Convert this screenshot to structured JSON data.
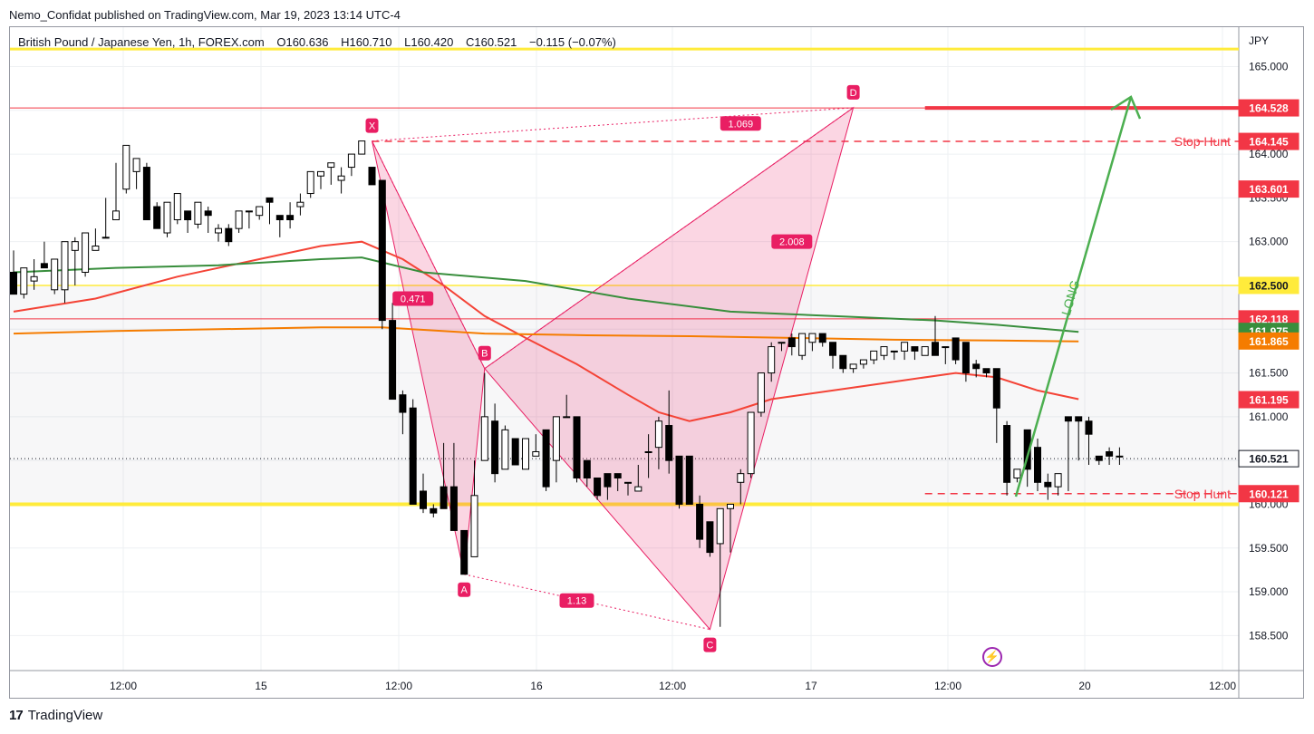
{
  "header": {
    "published": "Nemo_Confidat published on TradingView.com, Mar 19, 2023 13:14 UTC-4"
  },
  "legend": {
    "symbol": "British Pound / Japanese Yen, 1h, FOREX.com",
    "o_label": "O",
    "o": "160.636",
    "h_label": "H",
    "h": "160.710",
    "l_label": "L",
    "l": "160.420",
    "c_label": "C",
    "c": "160.521",
    "change": "−0.115 (−0.07%)"
  },
  "footer": {
    "brand": "TradingView"
  },
  "colors": {
    "bull": "#ffffff",
    "bear": "#000000",
    "pattern": "#e91e63",
    "red_level": "#f23645",
    "yellow": "#ffeb3b",
    "green_arrow": "#4caf50",
    "ma_red": "#f44336",
    "ma_green": "#388e3c",
    "ma_orange": "#f57c00"
  },
  "chart_data": {
    "type": "candlestick",
    "currency_label": "JPY",
    "y_ticks": [
      "158.500",
      "159.000",
      "159.500",
      "160.000",
      "160.500",
      "161.000",
      "161.500",
      "162.000",
      "162.500",
      "163.000",
      "163.500",
      "164.000",
      "164.500",
      "165.000"
    ],
    "ylim": [
      158.1,
      165.45
    ],
    "x_ticks": [
      "12:00",
      "15",
      "12:00",
      "16",
      "12:00",
      "17",
      "12:00",
      "20",
      "12:00"
    ],
    "candles": [
      [
        162.65,
        162.8,
        162.4,
        162.9
      ],
      [
        162.4,
        162.55,
        162.7,
        162.35
      ],
      [
        162.55,
        162.8,
        162.6,
        162.45
      ],
      [
        162.75,
        162.9,
        162.7,
        163.0
      ],
      [
        162.45,
        162.45,
        162.8,
        162.4
      ],
      [
        162.45,
        162.5,
        163.0,
        162.3
      ],
      [
        162.9,
        163.05,
        163.0,
        162.5
      ],
      [
        162.65,
        162.85,
        163.1,
        162.6
      ],
      [
        162.9,
        163.1,
        162.95,
        163.15
      ],
      [
        163.05,
        163.25,
        163.05,
        163.5
      ],
      [
        163.25,
        163.8,
        163.35,
        163.9
      ],
      [
        163.6,
        163.7,
        164.1,
        163.55
      ],
      [
        163.8,
        163.9,
        163.95,
        163.6
      ],
      [
        163.85,
        163.9,
        163.25,
        163.35
      ],
      [
        163.4,
        163.45,
        163.15,
        163.2
      ],
      [
        163.1,
        163.2,
        163.45,
        163.05
      ],
      [
        163.25,
        163.3,
        163.55,
        163.2
      ],
      [
        163.35,
        163.2,
        163.25,
        163.1
      ],
      [
        163.2,
        163.25,
        163.45,
        163.15
      ],
      [
        163.35,
        163.4,
        163.3,
        163.1
      ],
      [
        163.1,
        163.2,
        163.15,
        163.0
      ],
      [
        163.15,
        163.2,
        163.0,
        162.95
      ],
      [
        163.15,
        163.15,
        163.35,
        163.1
      ],
      [
        163.35,
        163.25,
        163.35,
        163.15
      ],
      [
        163.3,
        163.35,
        163.4,
        163.25
      ],
      [
        163.5,
        163.3,
        163.45,
        163.2
      ],
      [
        163.3,
        163.15,
        163.25,
        163.05
      ],
      [
        163.3,
        163.45,
        163.25,
        163.15
      ],
      [
        163.4,
        163.55,
        163.45,
        163.3
      ],
      [
        163.55,
        163.6,
        163.8,
        163.5
      ],
      [
        163.75,
        163.8,
        163.8,
        163.6
      ],
      [
        163.85,
        163.9,
        163.9,
        163.65
      ],
      [
        163.7,
        163.85,
        163.75,
        163.55
      ],
      [
        163.85,
        164.0,
        164.0,
        163.75
      ],
      [
        164.0,
        164.0,
        164.15,
        164.0
      ],
      [
        163.85,
        163.85,
        163.65,
        163.7
      ],
      [
        163.7,
        163.7,
        162.1,
        162.0
      ],
      [
        162.1,
        162.3,
        161.2,
        161.9
      ],
      [
        161.25,
        161.3,
        161.05,
        160.8
      ],
      [
        161.1,
        161.2,
        160.0,
        160.0
      ],
      [
        160.15,
        160.35,
        159.95,
        159.9
      ],
      [
        159.95,
        160.0,
        159.9,
        159.85
      ],
      [
        160.2,
        160.7,
        159.95,
        160.2
      ],
      [
        160.2,
        160.7,
        159.7,
        159.7
      ],
      [
        159.7,
        159.5,
        159.2,
        159.2
      ],
      [
        159.4,
        160.05,
        160.1,
        160.5
      ],
      [
        160.5,
        161.5,
        161.0,
        161.5
      ],
      [
        160.95,
        161.15,
        160.35,
        160.25
      ],
      [
        160.4,
        160.9,
        160.85,
        160.8
      ],
      [
        160.75,
        160.75,
        160.45,
        160.45
      ],
      [
        160.4,
        160.75,
        160.75,
        160.7
      ],
      [
        160.55,
        160.8,
        160.6,
        160.55
      ],
      [
        160.85,
        160.75,
        160.2,
        160.15
      ],
      [
        160.5,
        160.65,
        161.0,
        160.25
      ],
      [
        161.0,
        161.15,
        161.0,
        161.25
      ],
      [
        161.0,
        161.0,
        160.3,
        160.25
      ],
      [
        160.5,
        160.5,
        160.3,
        160.2
      ],
      [
        160.3,
        160.3,
        160.1,
        160.05
      ],
      [
        160.35,
        160.2,
        160.2,
        160.05
      ],
      [
        160.35,
        160.2,
        160.3,
        160.15
      ],
      [
        160.25,
        160.25,
        160.25,
        160.1
      ],
      [
        160.15,
        160.45,
        160.2,
        160.35
      ],
      [
        160.6,
        160.8,
        160.6,
        160.3
      ],
      [
        160.65,
        161.0,
        160.95,
        160.4
      ],
      [
        160.9,
        161.3,
        160.5,
        160.35
      ],
      [
        160.55,
        160.55,
        160.0,
        159.95
      ],
      [
        160.55,
        160.45,
        160.0,
        160.0
      ],
      [
        160.0,
        160.1,
        159.6,
        159.5
      ],
      [
        159.8,
        159.8,
        159.45,
        159.4
      ],
      [
        159.55,
        159.6,
        159.95,
        158.6
      ],
      [
        159.95,
        159.95,
        160.0,
        159.45
      ],
      [
        160.25,
        160.4,
        160.35,
        160.0
      ],
      [
        160.35,
        160.85,
        161.05,
        160.3
      ],
      [
        161.05,
        161.5,
        161.5,
        161.0
      ],
      [
        161.5,
        161.85,
        161.8,
        161.4
      ],
      [
        161.85,
        161.85,
        161.85,
        161.75
      ],
      [
        161.9,
        161.95,
        161.8,
        161.7
      ],
      [
        161.7,
        161.75,
        161.95,
        161.65
      ],
      [
        161.85,
        161.85,
        161.95,
        161.75
      ],
      [
        161.95,
        161.9,
        161.85,
        161.8
      ],
      [
        161.85,
        161.85,
        161.7,
        161.55
      ],
      [
        161.7,
        161.7,
        161.55,
        161.5
      ],
      [
        161.55,
        161.55,
        161.6,
        161.5
      ],
      [
        161.6,
        161.55,
        161.65,
        161.55
      ],
      [
        161.65,
        161.65,
        161.75,
        161.6
      ],
      [
        161.7,
        161.7,
        161.8,
        161.65
      ],
      [
        161.75,
        161.75,
        161.75,
        161.65
      ],
      [
        161.75,
        161.7,
        161.85,
        161.65
      ],
      [
        161.8,
        161.8,
        161.75,
        161.65
      ],
      [
        161.7,
        161.7,
        161.8,
        161.7
      ],
      [
        161.85,
        162.15,
        161.7,
        161.75
      ],
      [
        161.8,
        161.75,
        161.8,
        161.6
      ],
      [
        161.9,
        161.7,
        161.65,
        161.6
      ],
      [
        161.85,
        161.6,
        161.5,
        161.4
      ],
      [
        161.6,
        161.65,
        161.55,
        161.45
      ],
      [
        161.55,
        161.5,
        161.5,
        161.45
      ],
      [
        161.55,
        161.5,
        161.1,
        160.7
      ],
      [
        160.9,
        160.95,
        160.25,
        160.1
      ],
      [
        160.3,
        160.4,
        160.4,
        160.25
      ],
      [
        160.85,
        160.45,
        160.4,
        160.2
      ],
      [
        160.65,
        160.75,
        160.25,
        160.15
      ],
      [
        160.25,
        160.35,
        160.2,
        160.05
      ],
      [
        160.2,
        160.2,
        160.35,
        160.1
      ],
      [
        161.0,
        161.0,
        160.95,
        160.15
      ],
      [
        161.0,
        161.0,
        160.95,
        160.5
      ],
      [
        160.95,
        161.0,
        160.8,
        160.45
      ],
      [
        160.55,
        160.55,
        160.5,
        160.45
      ],
      [
        160.6,
        160.65,
        160.55,
        160.45
      ],
      [
        160.55,
        160.65,
        160.55,
        160.45
      ]
    ],
    "moving_averages": [
      {
        "color": "#f44336",
        "points": [
          [
            0,
            162.2
          ],
          [
            8,
            162.35
          ],
          [
            16,
            162.6
          ],
          [
            24,
            162.8
          ],
          [
            30,
            162.95
          ],
          [
            34,
            163.0
          ],
          [
            38,
            162.8
          ],
          [
            42,
            162.5
          ],
          [
            46,
            162.15
          ],
          [
            50,
            161.9
          ],
          [
            55,
            161.6
          ],
          [
            60,
            161.25
          ],
          [
            63,
            161.05
          ],
          [
            66,
            160.95
          ],
          [
            70,
            161.05
          ],
          [
            74,
            161.2
          ],
          [
            80,
            161.3
          ],
          [
            86,
            161.4
          ],
          [
            92,
            161.5
          ],
          [
            96,
            161.45
          ],
          [
            100,
            161.3
          ],
          [
            104,
            161.2
          ]
        ]
      },
      {
        "color": "#388e3c",
        "points": [
          [
            0,
            162.65
          ],
          [
            10,
            162.7
          ],
          [
            20,
            162.73
          ],
          [
            30,
            162.8
          ],
          [
            34,
            162.82
          ],
          [
            40,
            162.65
          ],
          [
            50,
            162.55
          ],
          [
            60,
            162.35
          ],
          [
            70,
            162.2
          ],
          [
            80,
            162.15
          ],
          [
            90,
            162.1
          ],
          [
            96,
            162.05
          ],
          [
            104,
            161.97
          ]
        ]
      },
      {
        "color": "#f57c00",
        "points": [
          [
            0,
            161.95
          ],
          [
            10,
            161.98
          ],
          [
            20,
            162.0
          ],
          [
            30,
            162.02
          ],
          [
            36,
            162.02
          ],
          [
            46,
            161.95
          ],
          [
            56,
            161.93
          ],
          [
            66,
            161.92
          ],
          [
            76,
            161.9
          ],
          [
            86,
            161.88
          ],
          [
            96,
            161.87
          ],
          [
            104,
            161.86
          ]
        ]
      }
    ],
    "horizontal_levels": [
      {
        "price": 165.2,
        "color": "#ffeb3b",
        "width": 3,
        "dash": "",
        "from": "left",
        "label": ""
      },
      {
        "price": 164.528,
        "color": "#f23645",
        "width": 1,
        "dash": "",
        "from": "left",
        "label": "164.528"
      },
      {
        "price": 164.145,
        "color": "#f23645",
        "width": 1.5,
        "dash": "8 6",
        "from": "x",
        "label": "164.145"
      },
      {
        "price": 162.5,
        "color": "#ffeb3b",
        "width": 1.5,
        "dash": "",
        "from": "left",
        "label": "162.500"
      },
      {
        "price": 162.118,
        "color": "#f23645",
        "width": 1,
        "dash": "",
        "from": "left",
        "label": "162.118"
      },
      {
        "price": 160.521,
        "color": "#131722",
        "width": 1,
        "dash": "1 3",
        "from": "left",
        "label": "160.521"
      },
      {
        "price": 160.121,
        "color": "#f23645",
        "width": 1.5,
        "dash": "8 6",
        "from": "stop",
        "label": "160.121"
      },
      {
        "price": 160.0,
        "color": "#ffeb3b",
        "width": 4,
        "dash": "",
        "from": "left",
        "label": ""
      }
    ],
    "price_labels": [
      {
        "text": "164.528",
        "color": "#f23645",
        "price": 164.528
      },
      {
        "text": "164.145",
        "color": "#f23645",
        "price": 164.145
      },
      {
        "text": "163.601",
        "color": "#f23645",
        "price": 163.601
      },
      {
        "text": "162.500",
        "color": "#ffeb3b",
        "price": 162.5,
        "dark_text": true
      },
      {
        "text": "162.118",
        "color": "#f23645",
        "price": 162.118
      },
      {
        "text": "161.975",
        "color": "#388e3c",
        "price": 161.975
      },
      {
        "text": "161.865",
        "color": "#f57c00",
        "price": 161.865
      },
      {
        "text": "161.195",
        "color": "#f23645",
        "price": 161.195
      },
      {
        "text": "160.521",
        "color": "#ffffff",
        "price": 160.521,
        "dark_text": true,
        "border": "#131722"
      },
      {
        "text": "160.121",
        "color": "#f23645",
        "price": 160.121
      }
    ],
    "harmonic_pattern": {
      "points": [
        {
          "label": "X",
          "x": 35,
          "price": 164.15
        },
        {
          "label": "A",
          "x": 44,
          "price": 159.2
        },
        {
          "label": "B",
          "x": 46,
          "price": 161.55
        },
        {
          "label": "C",
          "x": 68,
          "price": 158.57
        },
        {
          "label": "D",
          "x": 82,
          "price": 164.53
        }
      ],
      "ratios": [
        {
          "text": "0.471",
          "a": [
            35,
            164.15
          ],
          "b": [
            46,
            161.55
          ],
          "at": [
            39,
            162.35
          ]
        },
        {
          "text": "1.069",
          "a": [
            35,
            164.15
          ],
          "b": [
            82,
            164.53
          ],
          "at": [
            71,
            164.35
          ]
        },
        {
          "text": "2.008",
          "a": [
            46,
            161.55
          ],
          "b": [
            82,
            164.53
          ],
          "at": [
            76,
            163.0
          ]
        },
        {
          "text": "1.13",
          "a": [
            44,
            159.2
          ],
          "b": [
            68,
            158.57
          ],
          "at": [
            55,
            158.9
          ]
        }
      ]
    },
    "annotations": {
      "stop_hunt_top": "Stop Hunt",
      "stop_hunt_bottom": "Stop Hunt",
      "long": "LONG"
    }
  }
}
